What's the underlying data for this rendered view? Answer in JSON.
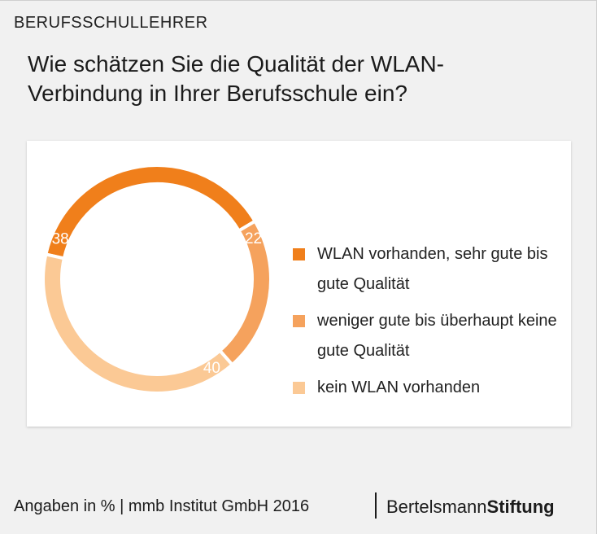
{
  "header": {
    "category": "BERUFSSCHULLEHRER",
    "title": "Wie schätzen Sie die Qualität der WLAN-Verbindung in Ihrer Berufsschule ein?"
  },
  "chart_data": {
    "type": "pie",
    "variant": "donut",
    "categories": [
      "WLAN vorhanden, sehr gute bis gute Qualität",
      "weniger gute bis überhaupt keine gute Qualität",
      "kein WLAN vorhanden"
    ],
    "values": [
      38,
      22,
      40
    ],
    "colors": [
      "#f07f1b",
      "#f5a25d",
      "#fbc995"
    ],
    "value_labels": [
      "38",
      "22",
      "40"
    ],
    "unit": "%",
    "legend_position": "right"
  },
  "footer": {
    "source": "Angaben in % | mmb Institut GmbH 2016",
    "brand_regular": "Bertelsmann",
    "brand_bold": "Stiftung"
  }
}
